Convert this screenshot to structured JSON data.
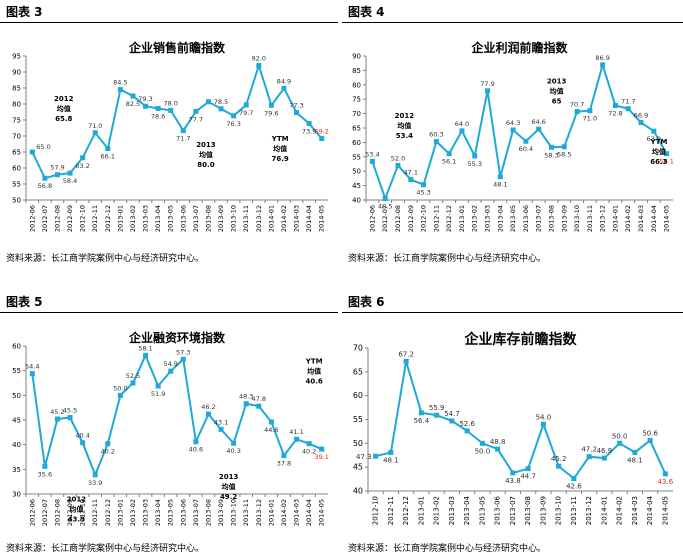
{
  "source_note": "资料来源：长江商学院案例中心与经济研究中心。",
  "chart_data": [
    {
      "type": "line",
      "figure_label": "图表 3",
      "title": "企业销售前瞻指数",
      "ylim": [
        50,
        95
      ],
      "ystep": 5,
      "categories": [
        "2012-06",
        "2012-07",
        "2012-08",
        "2012-09",
        "2012-10",
        "2012-11",
        "2012-12",
        "2013-01",
        "2013-02",
        "2013-03",
        "2013-04",
        "2013-05",
        "2013-06",
        "2013-07",
        "2013-08",
        "2013-09",
        "2013-10",
        "2013-11",
        "2013-12",
        "2014-01",
        "2014-02",
        "2014-03",
        "2014-04",
        "2014-05"
      ],
      "values": [
        65.0,
        56.8,
        57.9,
        58.4,
        63.2,
        71.0,
        66.1,
        84.5,
        82.5,
        79.3,
        78.6,
        78.0,
        71.7,
        77.7,
        80.7,
        78.5,
        76.3,
        79.7,
        92.0,
        79.6,
        84.9,
        77.3,
        73.9,
        69.2
      ],
      "value_labels": [
        "65.0",
        "56.8",
        "57.9",
        "58.4",
        "63.2",
        "71.0",
        "66.1",
        "84.5",
        "82.5",
        "79.3",
        "78.6",
        "78.0",
        "71.7",
        "77.7",
        "",
        "78.5",
        "76.3",
        "79.7",
        "92.0",
        "79.6",
        "84.9",
        "77.3",
        "73.9",
        "69.2"
      ],
      "label_pos": [
        "r",
        "b",
        "t",
        "b",
        "b",
        "t",
        "b",
        "t",
        "b",
        "t",
        "b",
        "t",
        "b",
        "b",
        "t",
        "t",
        "b",
        "b",
        "t",
        "b",
        "t",
        "t",
        "b",
        "t"
      ],
      "annotations": [
        {
          "lines": [
            "2012",
            "均值",
            "65.8"
          ],
          "x": 2.5,
          "y": 81
        },
        {
          "lines": [
            "2013",
            "均值",
            "80.0"
          ],
          "x": 13.8,
          "y": 66.5
        },
        {
          "lines": [
            "YTM",
            "均值",
            "76.9"
          ],
          "x": 19.7,
          "y": 68.5
        }
      ]
    },
    {
      "type": "line",
      "figure_label": "图表 4",
      "title": "企业利润前瞻指数",
      "ylim": [
        40,
        90
      ],
      "ystep": 5,
      "categories": [
        "2012-06",
        "2012-07",
        "2012-08",
        "2012-09",
        "2012-10",
        "2012-11",
        "2012-12",
        "2013-01",
        "2013-02",
        "2013-03",
        "2013-04",
        "2013-05",
        "2013-06",
        "2013-07",
        "2013-08",
        "2013-09",
        "2013-10",
        "2013-11",
        "2013-12",
        "2014-01",
        "2014-02",
        "2014-03",
        "2014-04",
        "2014-05"
      ],
      "values": [
        53.4,
        40.5,
        52.0,
        47.1,
        45.3,
        60.3,
        56.1,
        64.0,
        55.3,
        77.9,
        48.1,
        64.3,
        60.4,
        64.6,
        58.3,
        58.5,
        70.7,
        71.0,
        86.9,
        72.8,
        71.7,
        66.9,
        63.9,
        56.1
      ],
      "value_labels": [
        "53.4",
        "40.5",
        "52.0",
        "47.1",
        "45.3",
        "60.3",
        "56.1",
        "64.0",
        "55.3",
        "77.9",
        "48.1",
        "64.3",
        "60.4",
        "64.6",
        "58.3",
        "58.5",
        "70.7",
        "71.0",
        "86.9",
        "72.8",
        "71.7",
        "66.9",
        "63.9",
        "56.1"
      ],
      "label_pos": [
        "t",
        "b",
        "t",
        "t",
        "b",
        "t",
        "b",
        "t",
        "b",
        "t",
        "b",
        "t",
        "b",
        "t",
        "b",
        "b",
        "t",
        "b",
        "t",
        "b",
        "t",
        "t",
        "b",
        "b"
      ],
      "annotations": [
        {
          "lines": [
            "2012",
            "均值",
            "53.4"
          ],
          "x": 2.5,
          "y": 68.5
        },
        {
          "lines": [
            "2013",
            "均值",
            "65"
          ],
          "x": 14.4,
          "y": 80.5
        },
        {
          "lines": [
            "YTM",
            "均值",
            "66.3"
          ],
          "x": 22.4,
          "y": 59.5
        }
      ]
    },
    {
      "type": "line",
      "figure_label": "图表 5",
      "title": "企业融资环境指数",
      "ylim": [
        30,
        60
      ],
      "ystep": 5,
      "categories": [
        "2012-06",
        "2012-07",
        "2012-08",
        "2012-09",
        "2012-10",
        "2012-11",
        "2012-12",
        "2013-01",
        "2013-02",
        "2013-03",
        "2013-04",
        "2013-05",
        "2013-06",
        "2013-07",
        "2013-08",
        "2013-09",
        "2013-10",
        "2013-11",
        "2013-12",
        "2014-01",
        "2014-02",
        "2014-03",
        "2014-04",
        "2014-05"
      ],
      "values": [
        54.4,
        35.6,
        45.2,
        45.5,
        40.4,
        33.9,
        40.2,
        50.0,
        52.5,
        58.1,
        51.9,
        54.9,
        57.3,
        40.6,
        46.2,
        43.1,
        40.3,
        48.3,
        47.8,
        44.6,
        37.8,
        41.1,
        40.2,
        39.1
      ],
      "value_labels": [
        "54.4",
        "35.6",
        "45.2",
        "45.5",
        "40.4",
        "33.9",
        "40.2",
        "50.0",
        "52.5",
        "58.1",
        "51.9",
        "54.9",
        "57.3",
        "40.6",
        "46.2",
        "43.1",
        "40.3",
        "48.3",
        "47.8",
        "44.6",
        "37.8",
        "41.1",
        "40.2",
        "39.1"
      ],
      "label_pos": [
        "t",
        "b",
        "t",
        "t",
        "t",
        "b",
        "b",
        "t",
        "t",
        "t",
        "b",
        "t",
        "t",
        "b",
        "t",
        "t",
        "b",
        "t",
        "t",
        "b",
        "b",
        "t",
        "b",
        "b"
      ],
      "annotations": [
        {
          "lines": [
            "2012",
            "均值",
            "43.9"
          ],
          "x": 3.5,
          "y": 28.5
        },
        {
          "lines": [
            "2013",
            "均值",
            "49.2"
          ],
          "x": 15.6,
          "y": 33
        },
        {
          "lines": [
            "YTM",
            "均值",
            "40.6"
          ],
          "x": 22.4,
          "y": 56.5
        }
      ]
    },
    {
      "type": "line",
      "figure_label": "图表 6",
      "title": "企业库存前瞻指数",
      "ylim": [
        40,
        70
      ],
      "ystep": 5,
      "categories": [
        "2012-10",
        "2012-11",
        "2012-12",
        "2013-01",
        "2013-02",
        "2013-03",
        "2013-04",
        "2013-05",
        "2013-06",
        "2013-07",
        "2013-08",
        "2013-09",
        "2013-10",
        "2013-11",
        "2013-12",
        "2014-01",
        "2014-02",
        "2014-03",
        "2014-04",
        "2014-05"
      ],
      "values": [
        47.3,
        48.1,
        67.2,
        56.4,
        55.9,
        54.7,
        52.6,
        50.0,
        48.8,
        43.8,
        44.7,
        54.0,
        45.2,
        42.6,
        47.2,
        46.9,
        50.0,
        48.1,
        50.6,
        43.6
      ],
      "value_labels": [
        "47.3",
        "48.1",
        "67.2",
        "56.4",
        "55.9",
        "54.7",
        "52.6",
        "50.0",
        "48.8",
        "43.8",
        "44.7",
        "54.0",
        "45.2",
        "42.6",
        "47.2",
        "46.9",
        "50.0",
        "48.1",
        "50.6",
        "43.6"
      ],
      "label_pos": [
        "l",
        "b",
        "t",
        "b",
        "t",
        "t",
        "t",
        "b",
        "t",
        "b",
        "b",
        "t",
        "t",
        "b",
        "t",
        "t",
        "t",
        "b",
        "t",
        "b"
      ],
      "annotations": []
    }
  ]
}
